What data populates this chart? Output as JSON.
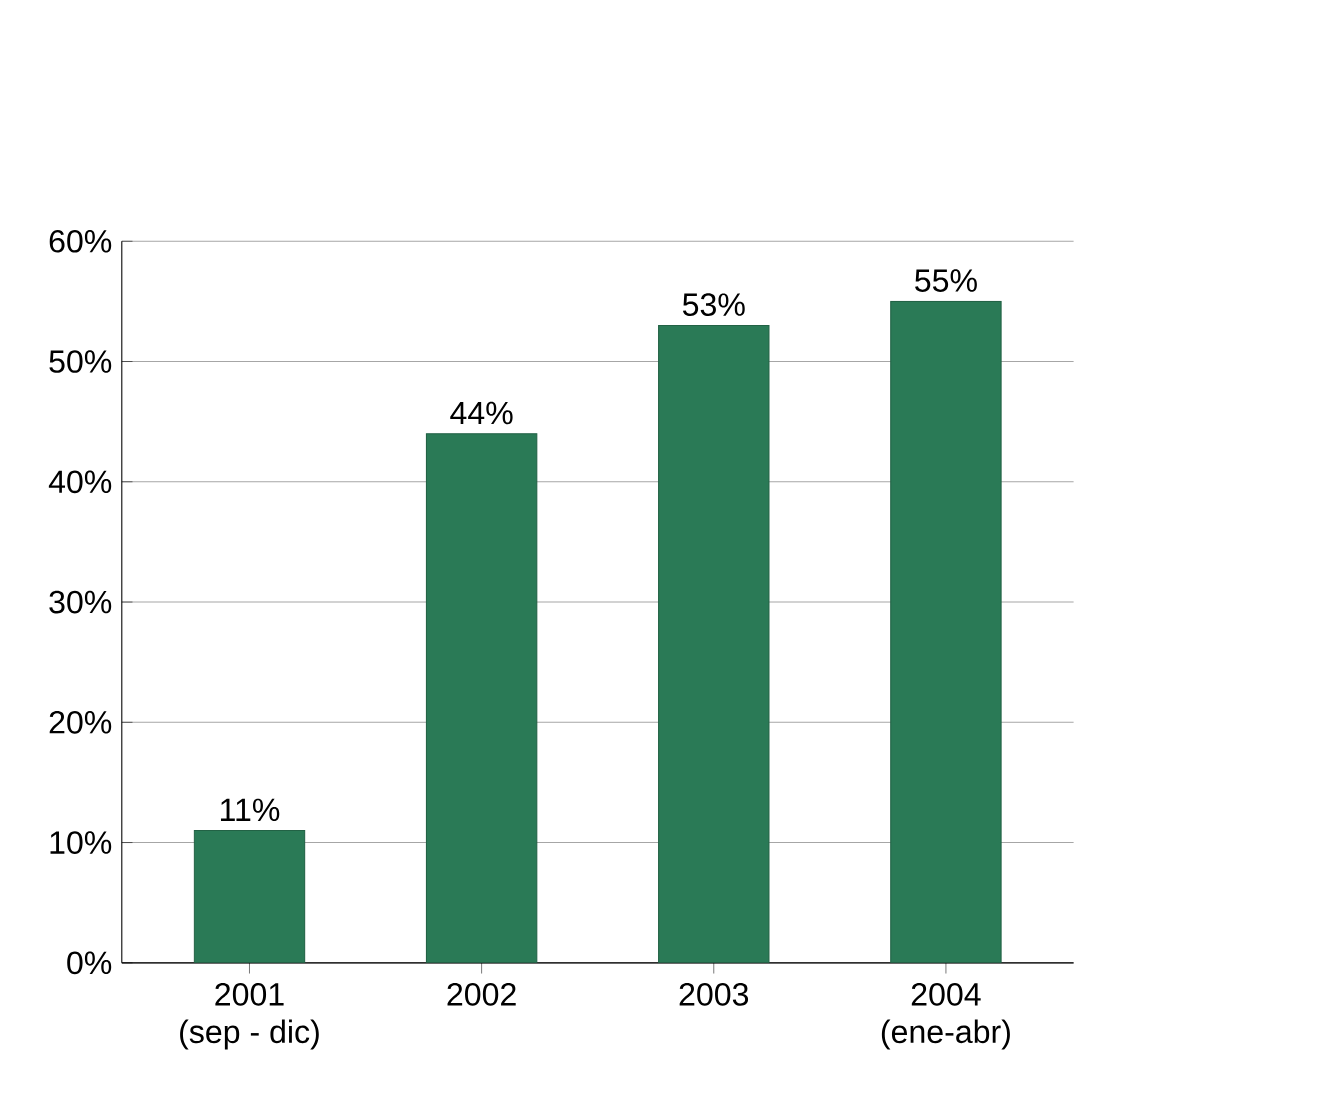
{
  "chart_data": {
    "type": "bar",
    "categories": [
      "2001\n(sep - dic)",
      "2002",
      "2003",
      "2004\n(ene-abr)"
    ],
    "values": [
      11,
      44,
      53,
      55
    ],
    "color": "#2a7a56",
    "data_labels": true,
    "value_labels": [
      "11%",
      "44%",
      "53%",
      "55%"
    ],
    "ylim": [
      0,
      60
    ],
    "yticks": [
      {
        "value": 0,
        "label": "0%"
      },
      {
        "value": 10,
        "label": "10%"
      },
      {
        "value": 20,
        "label": "20%"
      },
      {
        "value": 30,
        "label": "30%"
      },
      {
        "value": 40,
        "label": "40%"
      },
      {
        "value": 50,
        "label": "50%"
      },
      {
        "value": 60,
        "label": "60%"
      }
    ],
    "grid": "y"
  }
}
